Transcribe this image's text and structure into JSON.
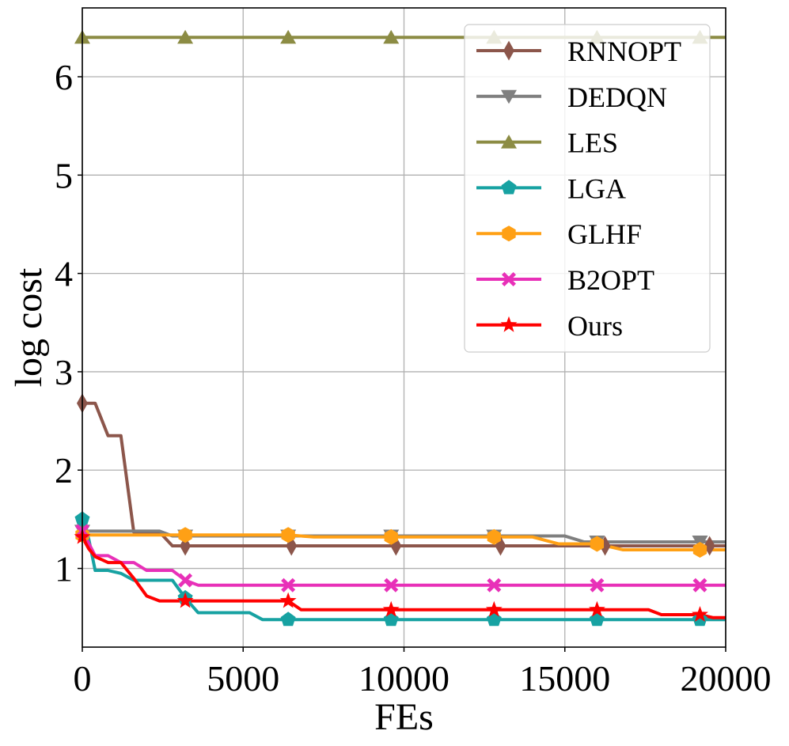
{
  "chart_data": {
    "type": "line",
    "xlabel": "FEs",
    "ylabel": "log cost",
    "xlim": [
      0,
      20000
    ],
    "ylim": [
      0.2,
      6.7
    ],
    "xticks": [
      0,
      5000,
      10000,
      15000,
      20000
    ],
    "yticks": [
      1,
      2,
      3,
      4,
      5,
      6
    ],
    "grid": true,
    "legend_position": "top-right",
    "series": [
      {
        "name": "RNNOPT",
        "color": "#8c564b",
        "marker": "diamond",
        "x": [
          0,
          200,
          400,
          800,
          1200,
          1600,
          2000,
          2400,
          2800,
          3200,
          6400,
          9600,
          12800,
          16000,
          19200,
          20000
        ],
        "y": [
          2.68,
          2.68,
          2.68,
          2.35,
          2.35,
          1.37,
          1.37,
          1.37,
          1.23,
          1.23,
          1.23,
          1.23,
          1.23,
          1.23,
          1.23,
          1.23
        ],
        "marker_x": [
          0,
          3200,
          6500,
          9750,
          13000,
          16250,
          19500
        ]
      },
      {
        "name": "DEDQN",
        "color": "#7f7f7f",
        "marker": "triangle-down",
        "x": [
          0,
          2400,
          2800,
          3200,
          15000,
          15600,
          20000
        ],
        "y": [
          1.38,
          1.38,
          1.33,
          1.33,
          1.33,
          1.27,
          1.27
        ],
        "marker_x": [
          0,
          3200,
          6400,
          9600,
          12800,
          16000,
          19200
        ]
      },
      {
        "name": "LES",
        "color": "#8c8c44",
        "marker": "triangle-up",
        "x": [
          0,
          20000
        ],
        "y": [
          6.4,
          6.4
        ],
        "marker_x": [
          0,
          3200,
          6400,
          9600,
          12800,
          16000,
          19200
        ]
      },
      {
        "name": "LGA",
        "color": "#17a2a2",
        "marker": "pentagon",
        "x": [
          0,
          200,
          400,
          800,
          1200,
          1600,
          2000,
          2400,
          2800,
          3200,
          3600,
          5200,
          5600,
          20000
        ],
        "y": [
          1.5,
          1.3,
          0.98,
          0.98,
          0.95,
          0.88,
          0.88,
          0.88,
          0.88,
          0.7,
          0.55,
          0.55,
          0.48,
          0.48
        ],
        "marker_x": [
          0,
          3200,
          6400,
          9600,
          12800,
          16000,
          19200
        ]
      },
      {
        "name": "GLHF",
        "color": "#ffa015",
        "marker": "hexagon",
        "x": [
          0,
          6400,
          7200,
          14000,
          14800,
          16000,
          16800,
          20000
        ],
        "y": [
          1.34,
          1.34,
          1.32,
          1.32,
          1.25,
          1.25,
          1.19,
          1.19
        ],
        "marker_x": [
          0,
          3200,
          6400,
          9600,
          12800,
          16000,
          19200
        ]
      },
      {
        "name": "B2OPT",
        "color": "#e830b8",
        "marker": "x",
        "x": [
          0,
          400,
          800,
          1200,
          1600,
          2000,
          2400,
          2800,
          3200,
          3600,
          4000,
          20000
        ],
        "y": [
          1.38,
          1.13,
          1.13,
          1.06,
          1.06,
          0.98,
          0.98,
          0.98,
          0.88,
          0.83,
          0.83,
          0.83
        ],
        "marker_x": [
          0,
          3200,
          6400,
          9600,
          12800,
          16000,
          19200
        ]
      },
      {
        "name": "Ours",
        "color": "#ff0000",
        "marker": "star",
        "x": [
          0,
          200,
          400,
          800,
          1200,
          1600,
          2000,
          2400,
          3200,
          6400,
          6800,
          17600,
          18000,
          19200,
          19600,
          20000
        ],
        "y": [
          1.32,
          1.2,
          1.12,
          1.06,
          1.06,
          0.9,
          0.72,
          0.67,
          0.67,
          0.67,
          0.58,
          0.58,
          0.53,
          0.53,
          0.5,
          0.5
        ],
        "marker_x": [
          0,
          3200,
          6400,
          9600,
          12800,
          16000,
          19200
        ]
      }
    ]
  }
}
